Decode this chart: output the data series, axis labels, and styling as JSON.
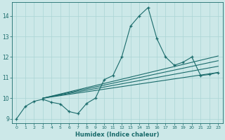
{
  "xlabel": "Humidex (Indice chaleur)",
  "bg_color": "#cce8e8",
  "line_color": "#1a6b6b",
  "grid_color": "#aad4d4",
  "xlim": [
    -0.5,
    23.5
  ],
  "ylim": [
    8.8,
    14.65
  ],
  "yticks": [
    9,
    10,
    11,
    12,
    13,
    14
  ],
  "xticks": [
    0,
    1,
    2,
    3,
    4,
    5,
    6,
    7,
    8,
    9,
    10,
    11,
    12,
    13,
    14,
    15,
    16,
    17,
    18,
    19,
    20,
    21,
    22,
    23
  ],
  "main_x": [
    0,
    1,
    2,
    3,
    4,
    5,
    6,
    7,
    8,
    9,
    10,
    11,
    12,
    13,
    14,
    15,
    16,
    17,
    18,
    19,
    20,
    21,
    22,
    23
  ],
  "main_y": [
    9.0,
    9.6,
    9.85,
    9.95,
    9.8,
    9.72,
    9.35,
    9.25,
    9.75,
    10.0,
    10.9,
    11.1,
    12.0,
    13.5,
    14.0,
    14.4,
    12.9,
    12.0,
    11.6,
    11.75,
    12.0,
    11.1,
    11.15,
    11.25
  ],
  "trend1_x": [
    3.0,
    23
  ],
  "trend1_y": [
    10.0,
    11.25
  ],
  "trend2_x": [
    3.0,
    23
  ],
  "trend2_y": [
    10.0,
    11.55
  ],
  "trend3_x": [
    3.0,
    23
  ],
  "trend3_y": [
    10.0,
    11.82
  ],
  "trend4_x": [
    3.0,
    23
  ],
  "trend4_y": [
    10.0,
    12.05
  ]
}
